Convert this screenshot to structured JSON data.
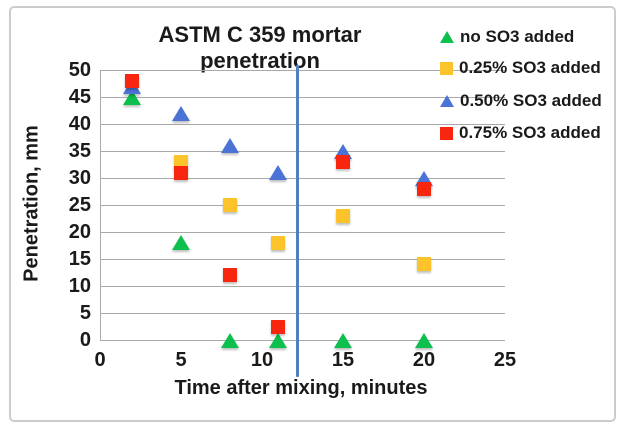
{
  "chart_data": {
    "type": "scatter",
    "title": "ASTM C 359 mortar penetration",
    "xlabel": "Time after mixing, minutes",
    "ylabel": "Penetration, mm",
    "xlim": [
      0,
      25
    ],
    "ylim": [
      0,
      50
    ],
    "xticks": [
      0,
      5,
      10,
      15,
      20,
      25
    ],
    "yticks": [
      0,
      5,
      10,
      15,
      20,
      25,
      30,
      35,
      40,
      45,
      50
    ],
    "grid": "horizontal",
    "legend_position": "top-right",
    "annotation_vline": {
      "x": 12.2,
      "color": "#4e81bd"
    },
    "series": [
      {
        "name": "no SO3 added",
        "marker": "triangle",
        "color": "#0dbf4d",
        "points": [
          [
            2,
            45
          ],
          [
            5,
            18
          ],
          [
            8,
            0
          ],
          [
            11,
            0
          ],
          [
            15,
            0
          ],
          [
            20,
            0
          ]
        ]
      },
      {
        "name": "0.25% SO3 added",
        "marker": "square",
        "color": "#fcc32b",
        "points": [
          [
            5,
            33
          ],
          [
            8,
            25
          ],
          [
            11,
            18
          ],
          [
            15,
            23
          ],
          [
            20,
            14
          ]
        ]
      },
      {
        "name": "0.50% SO3 added",
        "marker": "triangle",
        "color": "#4a73d5",
        "points": [
          [
            2,
            47
          ],
          [
            5,
            42
          ],
          [
            8,
            36
          ],
          [
            11,
            31
          ],
          [
            15,
            35
          ],
          [
            20,
            30
          ]
        ]
      },
      {
        "name": "0.75% SO3 added",
        "marker": "square",
        "color": "#f9260f",
        "points": [
          [
            2,
            48
          ],
          [
            5,
            31
          ],
          [
            8,
            12
          ],
          [
            11,
            2.5
          ],
          [
            15,
            33
          ],
          [
            20,
            28
          ]
        ]
      }
    ],
    "colors": {
      "grid": "#a9a9a9",
      "text": "#1a1a1a",
      "frame_border": "#cccccc",
      "vline": "#4e81bd"
    }
  }
}
